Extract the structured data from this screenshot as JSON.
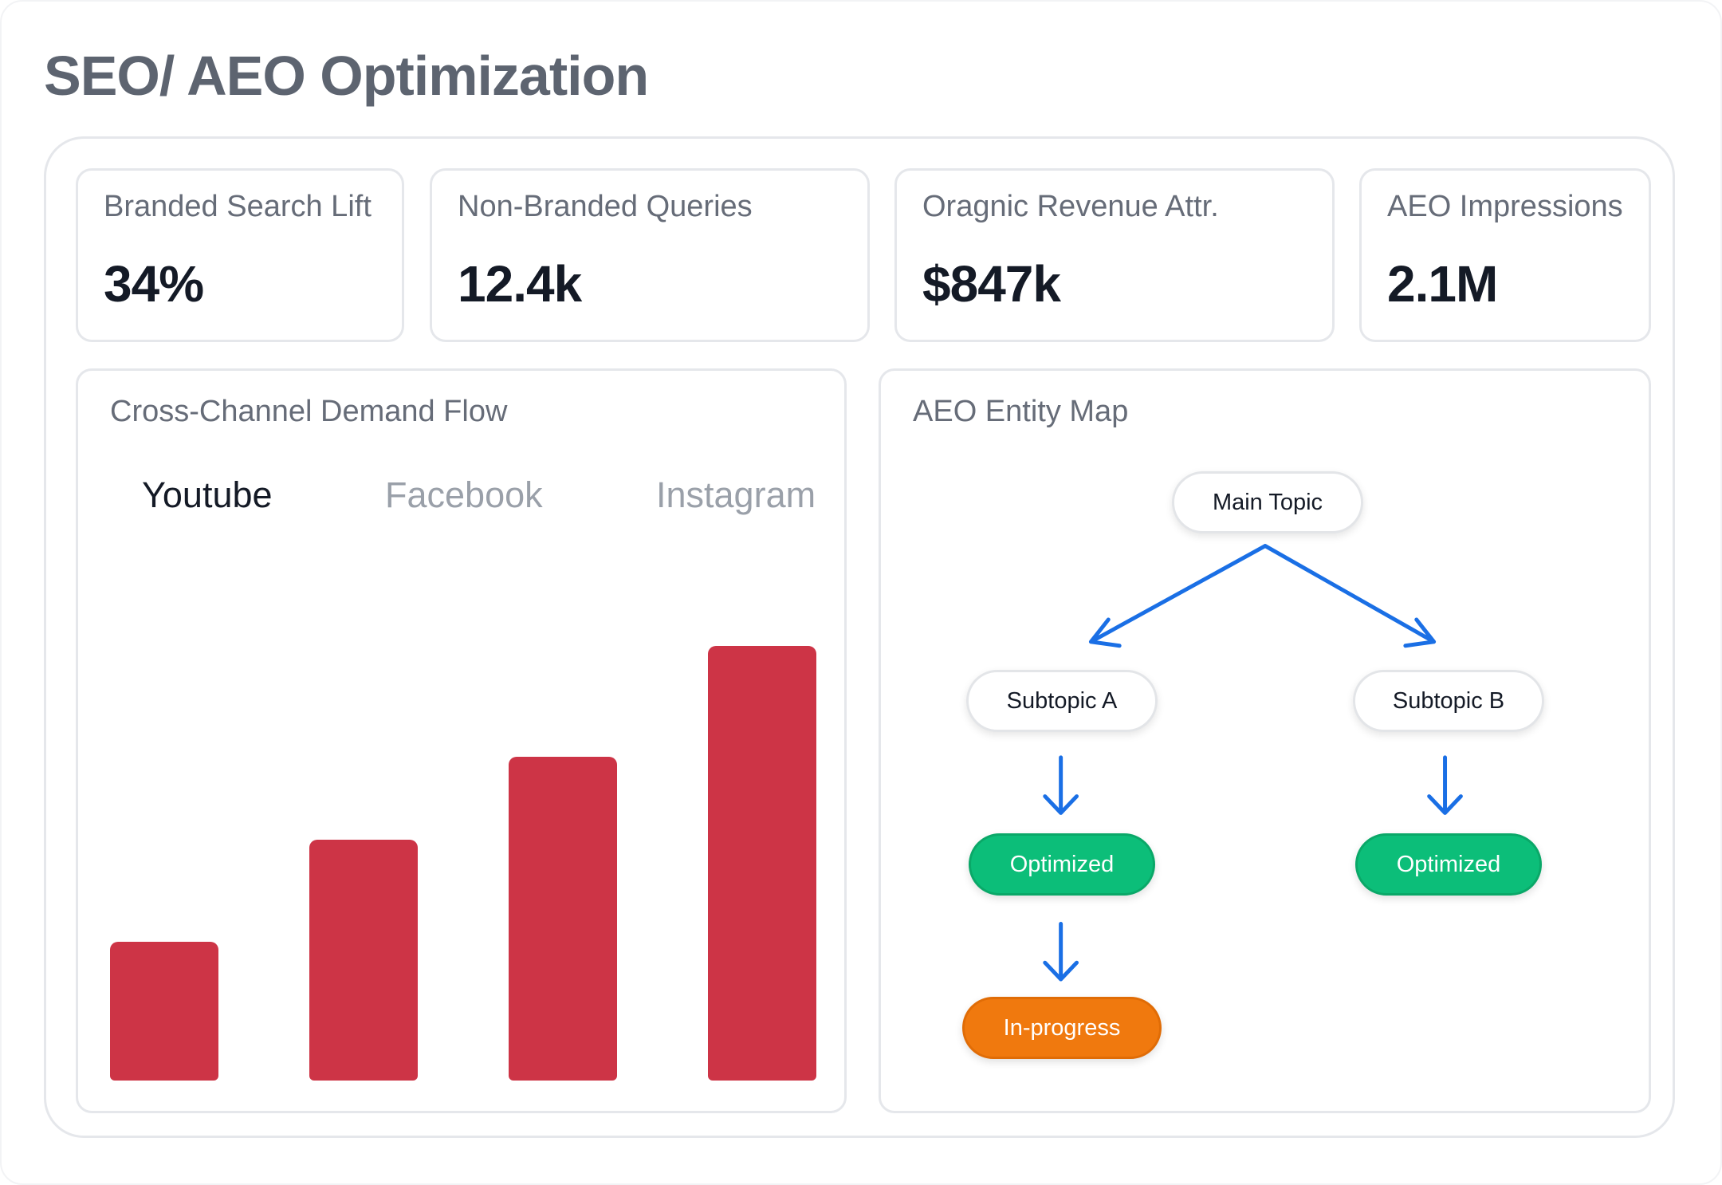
{
  "page": {
    "title": "SEO/ AEO Optimization"
  },
  "kpis": [
    {
      "label": "Branded Search Lift",
      "value": "34%"
    },
    {
      "label": "Non-Branded Queries",
      "value": "12.4k"
    },
    {
      "label": "Oragnic Revenue Attr.",
      "value": "$847k"
    },
    {
      "label": "AEO Impressions",
      "value": "2.1M"
    }
  ],
  "demand_flow": {
    "title": "Cross-Channel Demand Flow",
    "tabs": [
      {
        "label": "Youtube",
        "active": true
      },
      {
        "label": "Facebook",
        "active": false
      },
      {
        "label": "Instagram",
        "active": false
      }
    ]
  },
  "chart_data": {
    "type": "bar",
    "values": [
      30,
      52,
      70,
      94
    ],
    "ylim": [
      0,
      100
    ],
    "color": "#cd3446",
    "grid": false
  },
  "entity_map": {
    "title": "AEO Entity Map",
    "main_topic": "Main Topic",
    "subtopic_a": "Subtopic A",
    "subtopic_b": "Subtopic B",
    "status_a1": "Optimized",
    "status_a2": "In-progress",
    "status_b1": "Optimized",
    "colors": {
      "arrow": "#1a6fe5",
      "optimized": "#0cbe79",
      "in_progress": "#f0790e"
    }
  }
}
